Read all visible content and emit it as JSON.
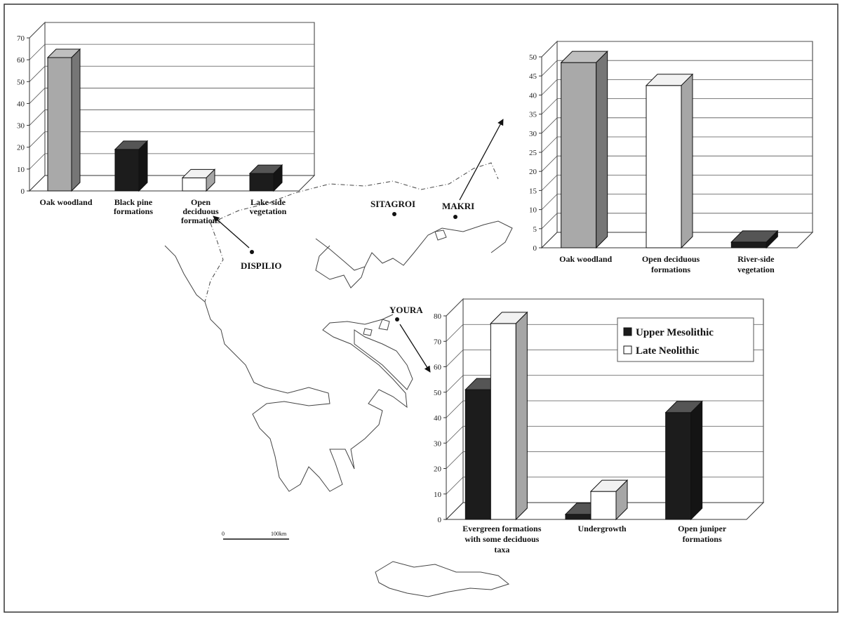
{
  "colors": {
    "oak": "#a9a9a9",
    "black": "#1c1c1c",
    "white": "#ffffff",
    "outline": "#111111"
  },
  "sites": {
    "sitagroi": "SITAGROI",
    "makri": "MAKRI",
    "dispilio": "DISPILIO",
    "youra": "YOURA"
  },
  "scale": {
    "zero": "0",
    "end": "100km"
  },
  "chart_data": [
    {
      "type": "bar",
      "site": "DISPILIO",
      "categories": [
        "Oak woodland",
        "Black pine formations",
        "Open deciduous formations",
        "Lake-side vegetation"
      ],
      "category_lines": [
        [
          "Oak woodland"
        ],
        [
          "Black pine",
          "formations"
        ],
        [
          "Open",
          "deciduous",
          "formations"
        ],
        [
          "Lake-side",
          "vegetation"
        ]
      ],
      "values": [
        61,
        19,
        6,
        8
      ],
      "bar_colors": [
        "#a9a9a9",
        "#1c1c1c",
        "#ffffff",
        "#1c1c1c"
      ],
      "ylim": [
        0,
        70
      ],
      "yticks": [
        0,
        10,
        20,
        30,
        40,
        50,
        60,
        70
      ],
      "grid": true
    },
    {
      "type": "bar",
      "site": "MAKRI",
      "categories": [
        "Oak woodland",
        "Open deciduous formations",
        "River-side vegetation"
      ],
      "category_lines": [
        [
          "Oak woodland"
        ],
        [
          "Open deciduous",
          "formations"
        ],
        [
          "River-side",
          "vegetation"
        ]
      ],
      "values": [
        48.5,
        42.5,
        1.5
      ],
      "bar_colors": [
        "#a9a9a9",
        "#ffffff",
        "#1c1c1c"
      ],
      "ylim": [
        0,
        50
      ],
      "yticks": [
        0,
        5,
        10,
        15,
        20,
        25,
        30,
        35,
        40,
        45,
        50
      ],
      "grid": true
    },
    {
      "type": "bar",
      "site": "YOURA",
      "categories": [
        "Evergreen formations with some deciduous taxa",
        "Undergrowth",
        "Open juniper formations"
      ],
      "category_lines": [
        [
          "Evergreen formations",
          "with some deciduous",
          "taxa"
        ],
        [
          "Undergrowth"
        ],
        [
          "Open juniper",
          "formations"
        ]
      ],
      "series": [
        {
          "name": "Upper Mesolithic",
          "color": "#1c1c1c",
          "values": [
            51,
            2,
            42
          ]
        },
        {
          "name": "Late Neolithic",
          "color": "#ffffff",
          "values": [
            77,
            11,
            0
          ]
        }
      ],
      "ylim": [
        0,
        80
      ],
      "yticks": [
        0,
        10,
        20,
        30,
        40,
        50,
        60,
        70,
        80
      ],
      "grid": true,
      "legend": "top-right"
    }
  ]
}
